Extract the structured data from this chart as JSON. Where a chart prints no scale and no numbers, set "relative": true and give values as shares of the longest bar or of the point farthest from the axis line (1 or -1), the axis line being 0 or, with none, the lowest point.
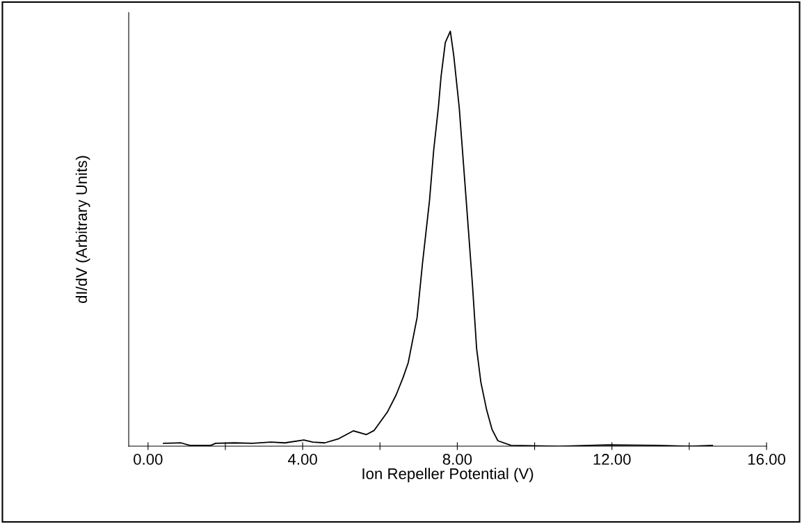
{
  "chart_data": {
    "type": "line",
    "xlabel": "Ion Repeller Potential (V)",
    "ylabel": "dI/dV (Arbitrary Units)",
    "relative": true,
    "xlim": [
      -0.5,
      16
    ],
    "xticks": [
      {
        "value": 0,
        "label": "0.00"
      },
      {
        "value": 2,
        "label": null
      },
      {
        "value": 4,
        "label": "4.00"
      },
      {
        "value": 6,
        "label": null
      },
      {
        "value": 8,
        "label": "8.00"
      },
      {
        "value": 10,
        "label": null
      },
      {
        "value": 12,
        "label": "12.00"
      },
      {
        "value": 14,
        "label": null
      },
      {
        "value": 16,
        "label": "16.00"
      }
    ],
    "grid": false,
    "legend": false,
    "series": [
      {
        "color": "#000000",
        "x": [
          0.4,
          0.85,
          1.08,
          1.62,
          1.75,
          2.23,
          2.7,
          3.18,
          3.54,
          4.03,
          4.26,
          4.57,
          4.93,
          5.31,
          5.65,
          5.85,
          6.19,
          6.42,
          6.6,
          6.73,
          6.96,
          7.1,
          7.28,
          7.39,
          7.51,
          7.58,
          7.69,
          7.82,
          7.91,
          8.05,
          8.16,
          8.27,
          8.39,
          8.5,
          8.61,
          8.76,
          8.9,
          9.05,
          9.39,
          10.63,
          11.9,
          13.2,
          14.0,
          14.6
        ],
        "values": [
          0.007,
          0.008,
          0.002,
          0.002,
          0.007,
          0.008,
          0.007,
          0.01,
          0.008,
          0.015,
          0.01,
          0.008,
          0.018,
          0.037,
          0.028,
          0.038,
          0.082,
          0.124,
          0.166,
          0.201,
          0.31,
          0.441,
          0.591,
          0.714,
          0.816,
          0.891,
          0.973,
          1.0,
          0.94,
          0.816,
          0.68,
          0.543,
          0.392,
          0.235,
          0.154,
          0.087,
          0.04,
          0.013,
          0.002,
          0.0,
          0.003,
          0.002,
          0.0,
          0.002
        ]
      }
    ]
  }
}
